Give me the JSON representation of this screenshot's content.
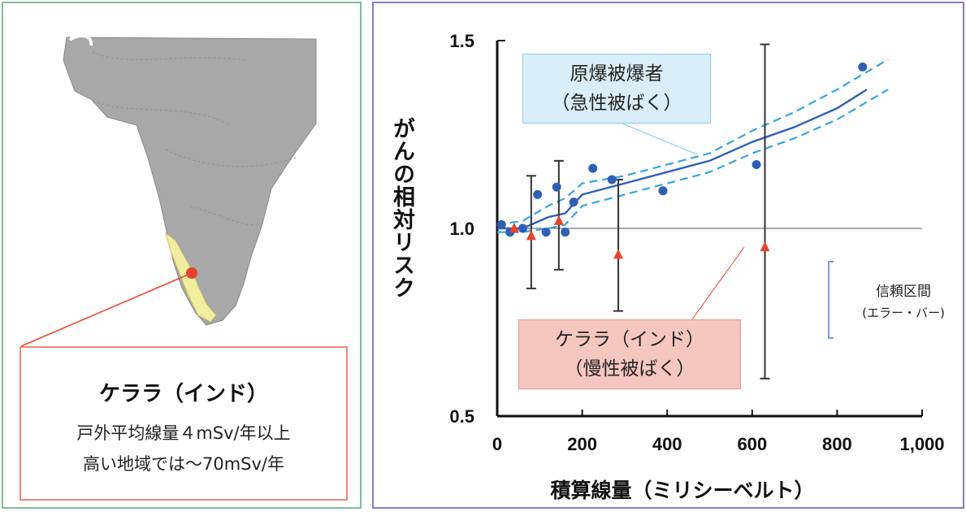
{
  "left": {
    "kerala_title": "ケララ（インド）",
    "kerala_line1": "戸外平均線量４mSv/年以上",
    "kerala_line2": "高い地域では～70mSv/年",
    "colors": {
      "land": "#a8a8a8",
      "region": "#f2eea0",
      "marker": "#e8432e",
      "connector": "#e8432e"
    }
  },
  "callouts": {
    "bomb_line1": "原爆被爆者",
    "bomb_line2": "（急性被ばく）",
    "kerala_line1": "ケララ（インド）",
    "kerala_line2": "（慢性被ばく）"
  },
  "ci_legend": {
    "line1": "信頼区間",
    "line2": "(エラー・バー)"
  },
  "chart_data": {
    "type": "scatter",
    "ylabel": "がんの相対リスク",
    "xlabel": "積算線量（ミリシーベルト）",
    "xlim": [
      0,
      1000
    ],
    "ylim": [
      0.5,
      1.5
    ],
    "x_ticks": [
      "0",
      "200",
      "400",
      "600",
      "800",
      "1,000"
    ],
    "y_ticks": [
      "0.5",
      "1.0",
      "1.5"
    ],
    "reference_line": 1.0,
    "series": [
      {
        "marker": "circle",
        "color": "#2f5fb5",
        "points": [
          [
            10,
            1.01
          ],
          [
            30,
            0.99
          ],
          [
            60,
            1.0
          ],
          [
            95,
            1.09
          ],
          [
            115,
            0.99
          ],
          [
            140,
            1.11
          ],
          [
            160,
            0.99
          ],
          [
            180,
            1.07
          ],
          [
            225,
            1.16
          ],
          [
            270,
            1.13
          ],
          [
            390,
            1.1
          ],
          [
            610,
            1.17
          ],
          [
            860,
            1.43
          ]
        ]
      },
      {
        "marker": "triangle",
        "color": "#e8432e",
        "points": [
          [
            40,
            1.0
          ],
          [
            80,
            0.98
          ],
          [
            145,
            1.02
          ],
          [
            285,
            0.93
          ],
          [
            630,
            0.95
          ]
        ],
        "error_low": [
          1.0,
          0.84,
          0.89,
          0.78,
          0.6
        ],
        "error_high": [
          1.0,
          1.14,
          1.18,
          1.13,
          1.49
        ]
      },
      {
        "line": "fit",
        "color": "#2f5fb5",
        "x": [
          0,
          60,
          120,
          160,
          200,
          300,
          400,
          500,
          600,
          700,
          800,
          870
        ],
        "y": [
          1.0,
          1.0,
          1.03,
          1.04,
          1.09,
          1.12,
          1.15,
          1.18,
          1.23,
          1.27,
          1.32,
          1.37
        ]
      },
      {
        "line": "upper-ci",
        "color": "#35a6e0",
        "x": [
          0,
          60,
          120,
          160,
          200,
          300,
          400,
          500,
          600,
          700,
          800,
          920
        ],
        "y": [
          1.01,
          1.02,
          1.06,
          1.08,
          1.12,
          1.14,
          1.17,
          1.2,
          1.26,
          1.31,
          1.37,
          1.45
        ]
      },
      {
        "line": "lower-ci",
        "color": "#35a6e0",
        "x": [
          0,
          60,
          120,
          160,
          200,
          300,
          400,
          500,
          600,
          700,
          800,
          920
        ],
        "y": [
          0.99,
          0.99,
          1.0,
          1.01,
          1.06,
          1.09,
          1.12,
          1.15,
          1.2,
          1.24,
          1.29,
          1.37
        ]
      }
    ]
  }
}
